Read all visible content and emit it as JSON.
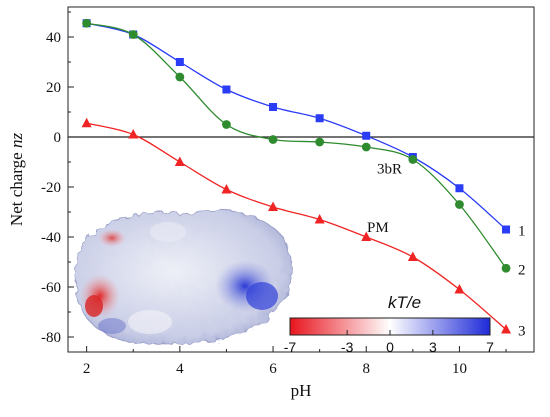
{
  "chart_data": {
    "type": "line",
    "xlabel": "pH",
    "ylabel_text": "Net charge ",
    "ylabel_italic": "nz",
    "xlim": [
      1.6,
      11.6
    ],
    "ylim": [
      -86,
      52
    ],
    "x_ticks": [
      2,
      4,
      6,
      8,
      10
    ],
    "y_ticks": [
      -80,
      -60,
      -40,
      -20,
      0,
      20,
      40
    ],
    "reference_line_y": 0,
    "series": [
      {
        "name": "1",
        "color": "#2a3cf5",
        "marker": "square",
        "x": [
          2,
          3,
          4,
          5,
          6,
          7,
          8,
          9,
          10,
          11
        ],
        "y": [
          45.5,
          41,
          30,
          19,
          12,
          7.5,
          0.5,
          -8,
          -20.5,
          -37
        ]
      },
      {
        "name": "2",
        "color": "#2e8b2e",
        "marker": "circle",
        "x": [
          2,
          3,
          4,
          5,
          6,
          7,
          8,
          9,
          10,
          11
        ],
        "y": [
          45.5,
          41,
          24,
          5,
          -1,
          -2,
          -4,
          -9,
          -27,
          -52.5
        ]
      },
      {
        "name": "3",
        "color": "#f02424",
        "marker": "triangle",
        "x": [
          2,
          3,
          4,
          5,
          6,
          7,
          8,
          9,
          10,
          11
        ],
        "y": [
          5.5,
          1,
          -10,
          -21,
          -28,
          -33,
          -40,
          -48,
          -61,
          -77
        ]
      }
    ],
    "annotations": [
      {
        "text": "3bR",
        "x": 8.5,
        "y": -14.5
      },
      {
        "text": "PM",
        "x": 8.25,
        "y": -38
      }
    ],
    "colorbar": {
      "title": "kT/e",
      "ticks": [
        "-7",
        "-3",
        "0",
        "3",
        "7"
      ],
      "colors": [
        "#e8141e",
        "#ffffff",
        "#1f2ad8"
      ]
    },
    "inset_image": "protein-surface-electrostatics"
  }
}
